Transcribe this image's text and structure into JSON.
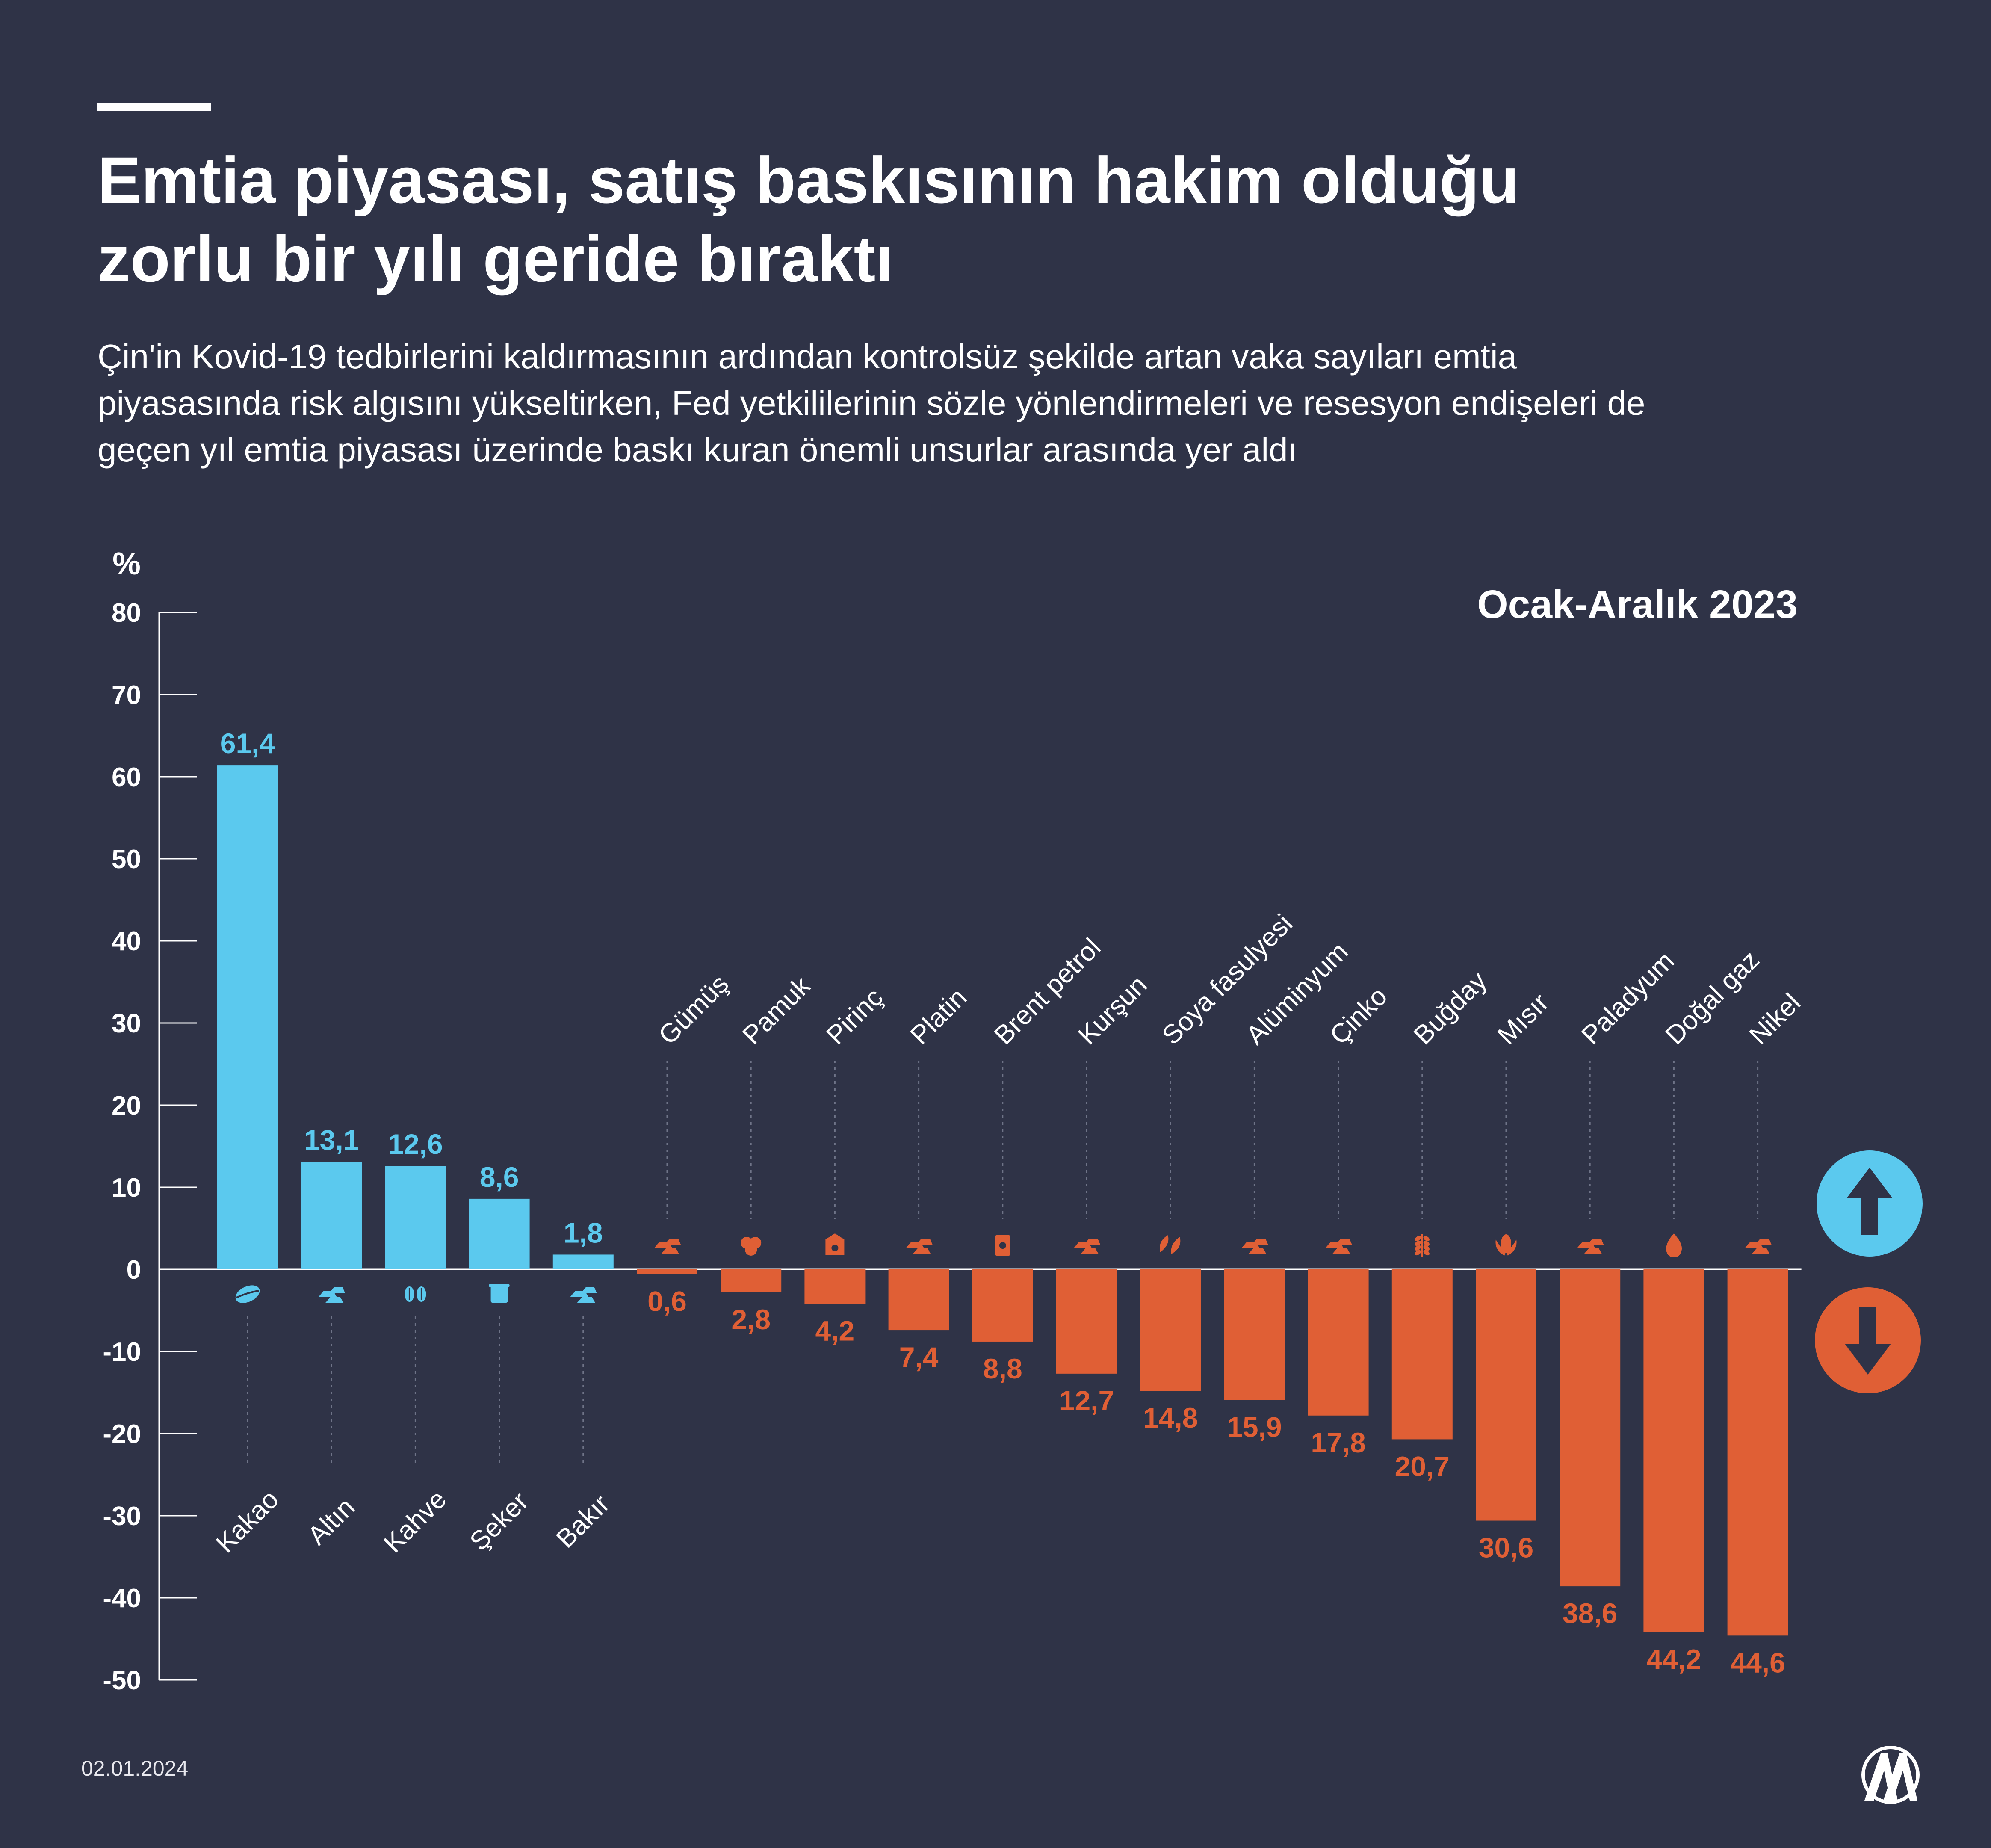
{
  "title_lines": [
    "Emtia piyasası, satış baskısının hakim olduğu",
    "zorlu bir yılı geride bıraktı"
  ],
  "subtitle_lines": [
    "Çin'in Kovid-19 tedbirlerini kaldırmasının ardından kontrolsüz şekilde artan vaka sayıları emtia",
    "piyasasında risk algısını yükseltirken, Fed yetkililerinin sözle yönlendirmeleri ve resesyon endişeleri de",
    "geçen yıl emtia piyasası üzerinde baskı kuran önemli unsurlar arasında yer aldı"
  ],
  "period": "Ocak-Aralık 2023",
  "date": "02.01.2024",
  "logo_text": "AA",
  "colors": {
    "background": "#2f3347",
    "positive": "#5bc9ee",
    "negative": "#e05f35",
    "axis": "#ffffff",
    "guide": "#6f7488"
  },
  "chart_data": {
    "type": "bar",
    "ylabel": "%",
    "ylim": [
      -50,
      80
    ],
    "yticks": [
      80,
      70,
      60,
      50,
      40,
      30,
      20,
      10,
      0,
      -10,
      -20,
      -30,
      -40,
      -50
    ],
    "categories": [
      "Kakao",
      "Altın",
      "Kahve",
      "Şeker",
      "Bakır",
      "Gümüş",
      "Pamuk",
      "Pirinç",
      "Platin",
      "Brent petrol",
      "Kurşun",
      "Soya fasulyesi",
      "Alüminyum",
      "Çinko",
      "Buğday",
      "Mısır",
      "Paladyum",
      "Doğal gaz",
      "Nikel"
    ],
    "values": [
      61.4,
      13.1,
      12.6,
      8.6,
      1.8,
      -0.6,
      -2.8,
      -4.2,
      -7.4,
      -8.8,
      -12.7,
      -14.8,
      -15.9,
      -17.8,
      -20.7,
      -30.6,
      -38.6,
      -44.2,
      -44.6
    ],
    "value_labels": [
      "61,4",
      "13,1",
      "12,6",
      "8,6",
      "1,8",
      "0,6",
      "2,8",
      "4,2",
      "7,4",
      "8,8",
      "12,7",
      "14,8",
      "15,9",
      "17,8",
      "20,7",
      "30,6",
      "38,6",
      "44,2",
      "44,6"
    ],
    "icons": [
      "cocoa-icon",
      "metal-bars-icon",
      "coffee-beans-icon",
      "sugar-icon",
      "metal-bars-icon",
      "metal-bars-icon",
      "cotton-icon",
      "rice-sack-icon",
      "metal-bars-icon",
      "oil-barrel-icon",
      "metal-bars-icon",
      "soybean-icon",
      "metal-bars-icon",
      "metal-bars-icon",
      "wheat-icon",
      "corn-icon",
      "metal-bars-icon",
      "flame-icon",
      "metal-bars-icon"
    ],
    "grid": false
  }
}
